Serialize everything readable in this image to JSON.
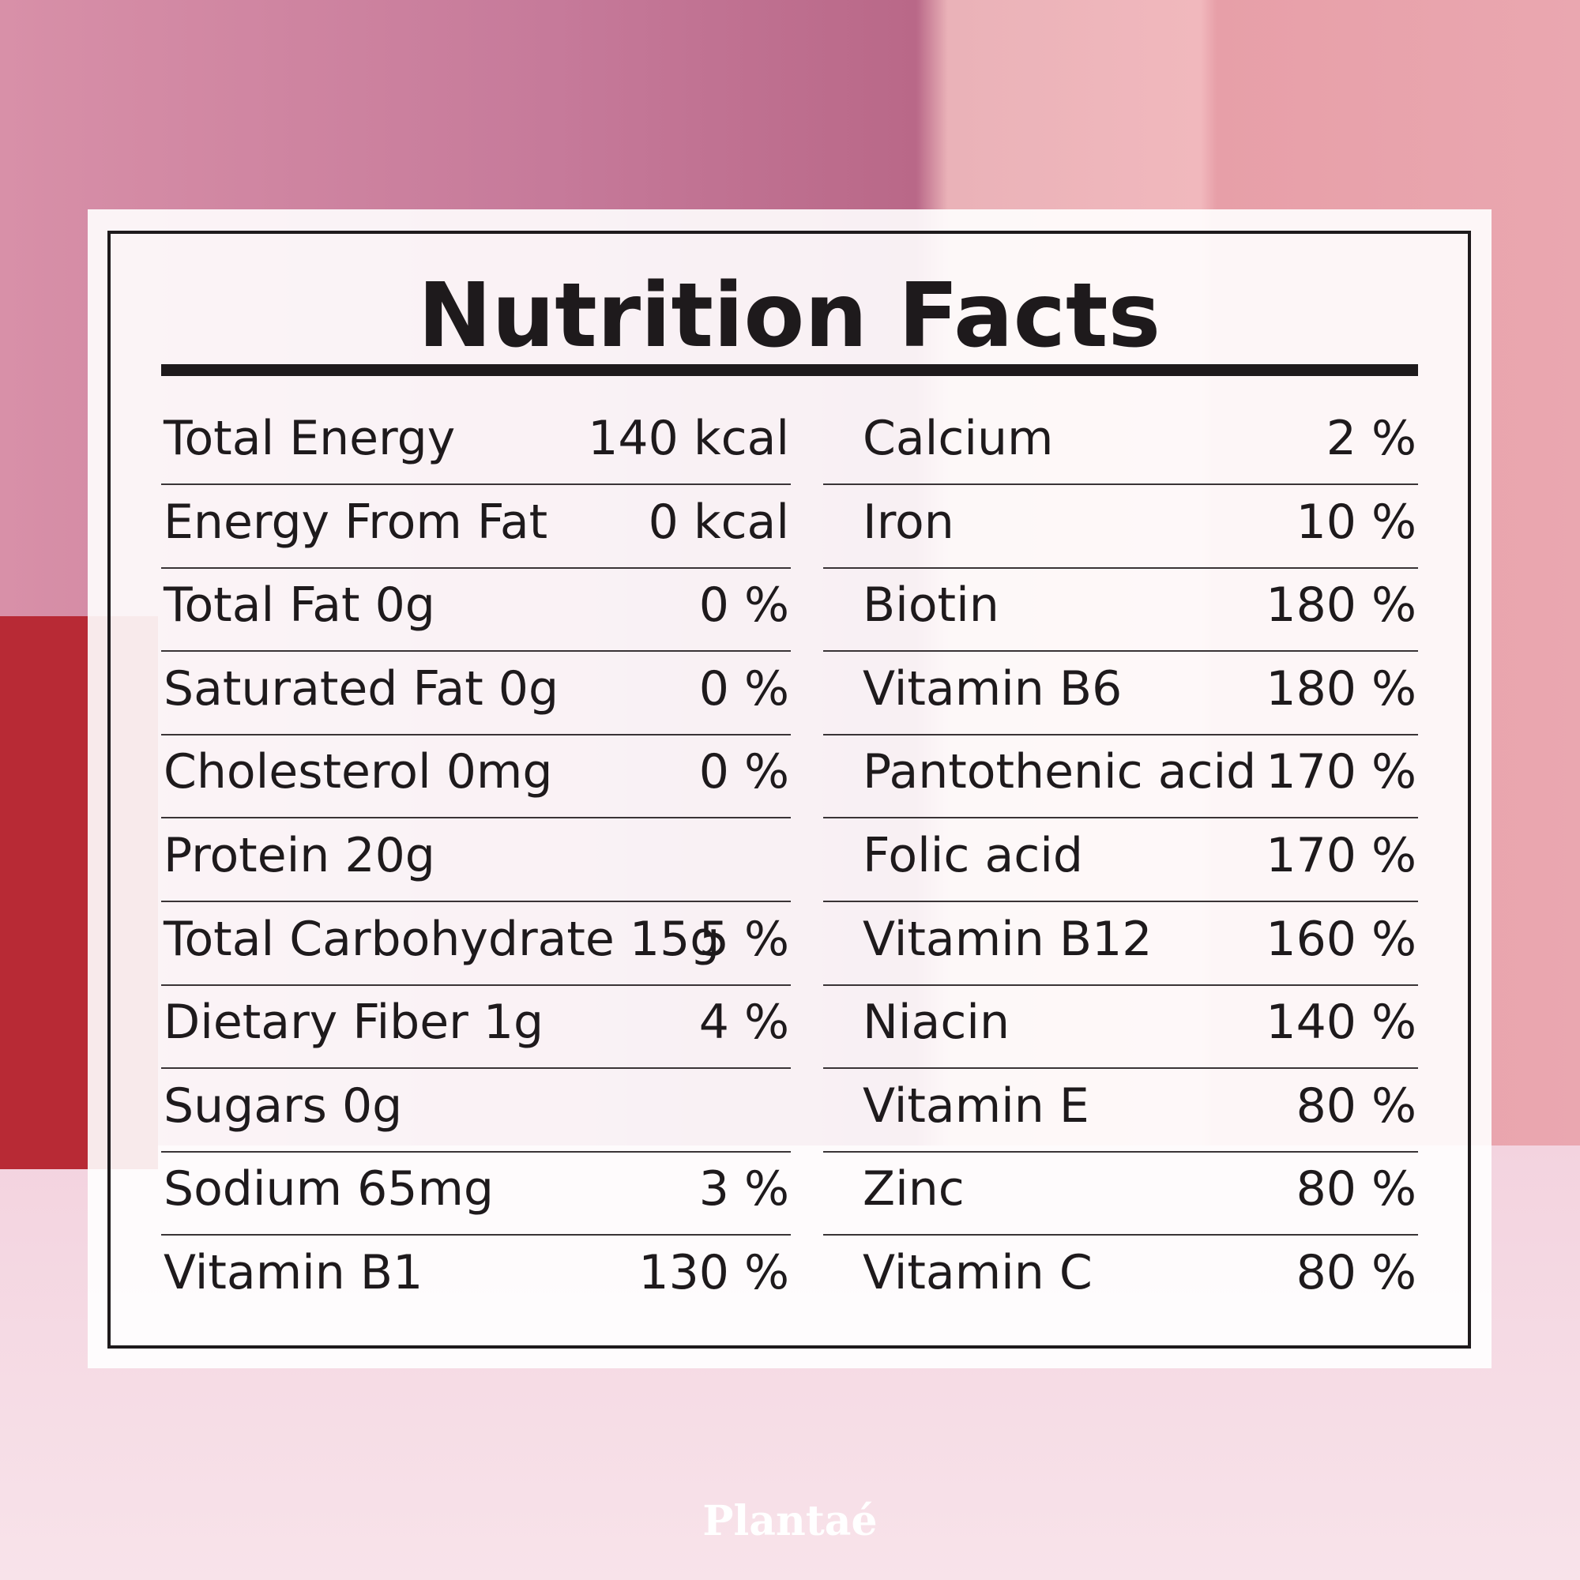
{
  "title": "Nutrition Facts",
  "left_rows": [
    {
      "label": "Total Energy",
      "value": "140 kcal"
    },
    {
      "label": "Energy From Fat",
      "value": "0 kcal"
    },
    {
      "label": "Total Fat 0g",
      "value": "0 %"
    },
    {
      "label": "Saturated Fat 0g",
      "value": "0 %"
    },
    {
      "label": "Cholesterol 0mg",
      "value": "0 %"
    },
    {
      "label": "Protein 20g",
      "value": ""
    },
    {
      "label": "Total Carbohydrate 15g",
      "value": "5 %"
    },
    {
      "label": "Dietary Fiber 1g",
      "value": "4 %"
    },
    {
      "label": "Sugars 0g",
      "value": ""
    },
    {
      "label": "Sodium 65mg",
      "value": "3 %"
    },
    {
      "label": "Vitamin B1",
      "value": "130 %"
    }
  ],
  "right_rows": [
    {
      "label": "Calcium",
      "value": "2 %"
    },
    {
      "label": "Iron",
      "value": "10 %"
    },
    {
      "label": "Biotin",
      "value": "180 %"
    },
    {
      "label": "Vitamin B6",
      "value": "180 %"
    },
    {
      "label": "Pantothenic acid",
      "value": "170 %"
    },
    {
      "label": "Folic acid",
      "value": "170 %"
    },
    {
      "label": "Vitamin B12",
      "value": "160 %"
    },
    {
      "label": "Niacin",
      "value": "140 %"
    },
    {
      "label": "Vitamin E",
      "value": "80 %"
    },
    {
      "label": "Zinc",
      "value": "80 %"
    },
    {
      "label": "Vitamin C",
      "value": "80 %"
    }
  ],
  "brand": "Plantaé"
}
